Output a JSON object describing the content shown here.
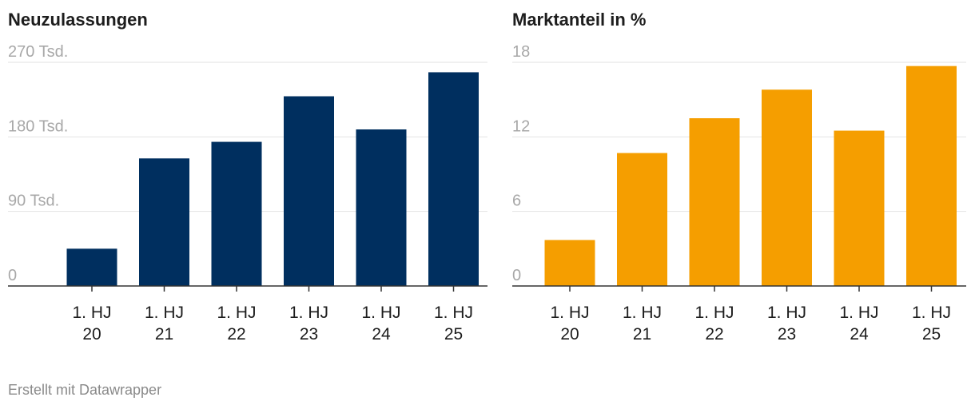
{
  "footer": {
    "credit": "Erstellt mit Datawrapper"
  },
  "chart_data": [
    {
      "type": "bar",
      "title": "Neuzulassungen",
      "categories": [
        [
          "1. HJ",
          "20"
        ],
        [
          "1. HJ",
          "21"
        ],
        [
          "1. HJ",
          "22"
        ],
        [
          "1. HJ",
          "23"
        ],
        [
          "1. HJ",
          "24"
        ],
        [
          "1. HJ",
          "25"
        ]
      ],
      "values": [
        45000,
        154000,
        174000,
        229000,
        189000,
        258000
      ],
      "ylim": [
        0,
        270000
      ],
      "yticks": [
        {
          "value": 0,
          "label": "0"
        },
        {
          "value": 90000,
          "label": "90 Tsd."
        },
        {
          "value": 180000,
          "label": "180 Tsd."
        },
        {
          "value": 270000,
          "label": "270 Tsd."
        }
      ],
      "color": "#002f5f",
      "grid": true
    },
    {
      "type": "bar",
      "title": "Marktanteil in %",
      "categories": [
        [
          "1. HJ",
          "20"
        ],
        [
          "1. HJ",
          "21"
        ],
        [
          "1. HJ",
          "22"
        ],
        [
          "1. HJ",
          "23"
        ],
        [
          "1. HJ",
          "24"
        ],
        [
          "1. HJ",
          "25"
        ]
      ],
      "values": [
        3.7,
        10.7,
        13.5,
        15.8,
        12.5,
        17.7
      ],
      "ylim": [
        0,
        18
      ],
      "yticks": [
        {
          "value": 0,
          "label": "0"
        },
        {
          "value": 6,
          "label": "6"
        },
        {
          "value": 12,
          "label": "12"
        },
        {
          "value": 18,
          "label": "18"
        }
      ],
      "color": "#f59e00",
      "grid": true
    }
  ]
}
